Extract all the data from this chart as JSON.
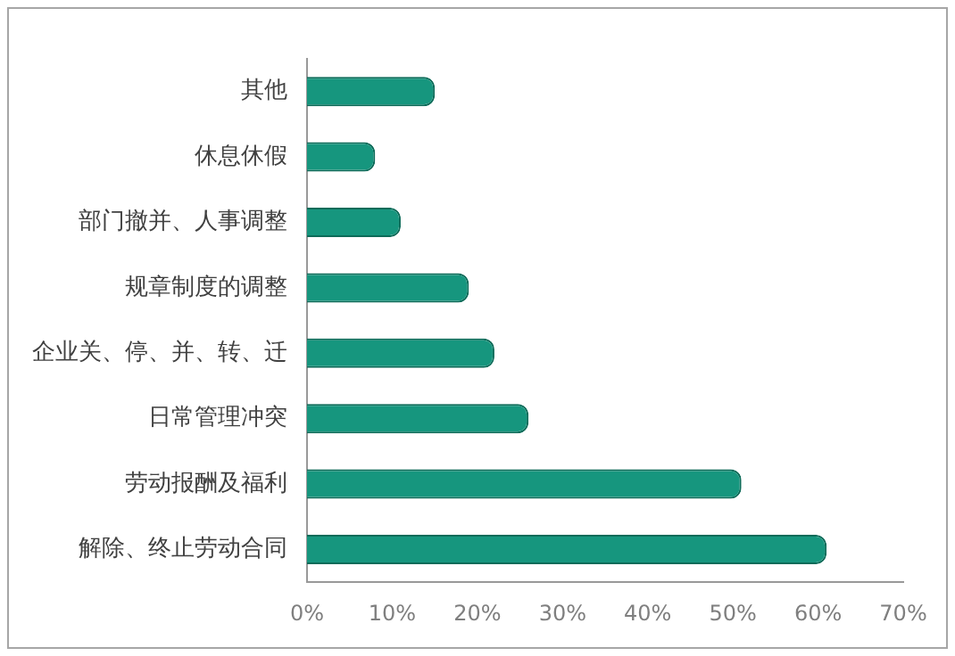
{
  "chart_data": {
    "type": "bar",
    "orientation": "horizontal",
    "categories": [
      "其他",
      "休息休假",
      "部门撤并、人事调整",
      "规章制度的调整",
      "企业关、停、并、转、迁",
      "日常管理冲突",
      "劳动报酬及福利",
      "解除、终止劳动合同"
    ],
    "values": [
      15,
      8,
      11,
      19,
      22,
      26,
      51,
      61
    ],
    "color": "#16967e",
    "xlim": [
      0,
      70
    ],
    "xticks": [
      {
        "value": 0,
        "label": "0%"
      },
      {
        "value": 10,
        "label": "10%"
      },
      {
        "value": 20,
        "label": "20%"
      },
      {
        "value": 30,
        "label": "30%"
      },
      {
        "value": 40,
        "label": "40%"
      },
      {
        "value": 50,
        "label": "50%"
      },
      {
        "value": 60,
        "label": "60%"
      },
      {
        "value": 70,
        "label": "70%"
      }
    ],
    "grid": false,
    "legend": false
  }
}
